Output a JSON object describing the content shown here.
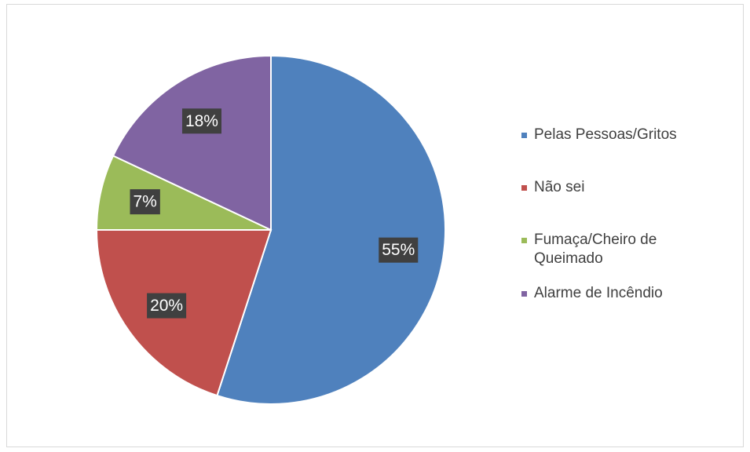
{
  "chart_data": {
    "type": "pie",
    "categories": [
      "Pelas Pessoas/Gritos",
      "Não sei",
      "Fumaça/Cheiro de Queimado",
      "Alarme de Incêndio"
    ],
    "values": [
      55,
      20,
      7,
      18
    ],
    "value_labels": [
      "55%",
      "20%",
      "7%",
      "18%"
    ],
    "colors": [
      "#4f81bd",
      "#c0504d",
      "#9bbb59",
      "#8064a2"
    ],
    "legend": "right"
  }
}
